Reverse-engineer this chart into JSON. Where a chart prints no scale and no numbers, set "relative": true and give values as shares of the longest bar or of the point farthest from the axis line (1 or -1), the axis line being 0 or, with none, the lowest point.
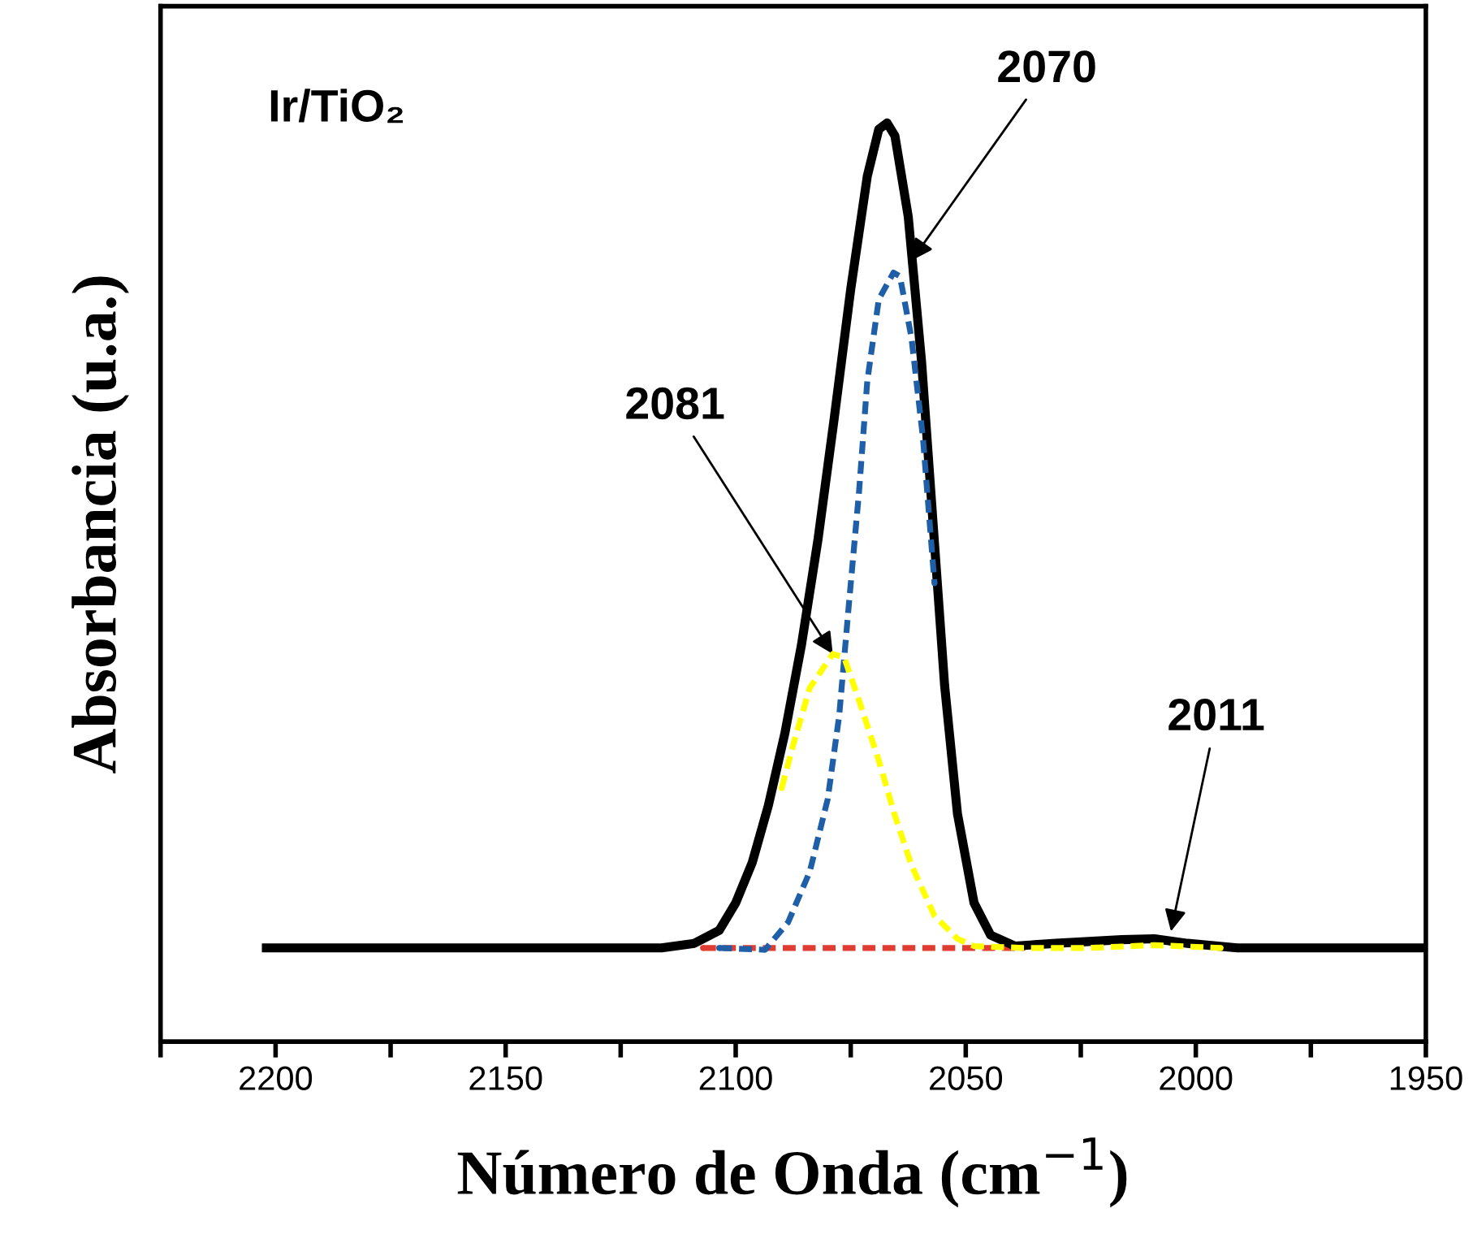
{
  "chart_data": {
    "type": "line",
    "relative": true,
    "xlabel": "Número de Onda (cm$^{−1}$)",
    "ylabel": "Absorbancia (u.a.)",
    "annotations": [
      "Ir/TiO₂",
      {
        "text": "2070",
        "x": 2061.8,
        "y": 0.85
      },
      {
        "text": "2081",
        "x": 2078.9,
        "y": 0.422
      },
      {
        "text": "2011",
        "x": 2005.4,
        "y": 0.12
      }
    ],
    "xlim": [
      2225,
      1950
    ],
    "xticks": [
      {
        "value": 2225,
        "label": null
      },
      2200,
      {
        "value": 2175,
        "label": null
      },
      2150,
      {
        "value": 2125,
        "label": null
      },
      2100,
      {
        "value": 2075,
        "label": null
      },
      2050,
      {
        "value": 2025,
        "label": null
      },
      2000,
      {
        "value": 1975,
        "label": null
      },
      1950
    ],
    "tick_labels": "x",
    "grid": false,
    "legend": false,
    "series": [
      {
        "color": "#000000",
        "line_style": "solid",
        "x": [
          2202,
          2116.1,
          2109,
          2103.6,
          2100,
          2096.4,
          2092.9,
          2089.3,
          2085.7,
          2082.1,
          2078.6,
          2075,
          2071.4,
          2068.9,
          2067.1,
          2065.4,
          2062.5,
          2059.6,
          2057.1,
          2054.6,
          2051.8,
          2048.2,
          2044.6,
          2039.3,
          2030.4,
          2016.1,
          2009,
          2001.8,
          1991,
          1950
        ],
        "values": [
          0.102,
          0.102,
          0.107,
          0.121,
          0.151,
          0.195,
          0.257,
          0.336,
          0.432,
          0.547,
          0.678,
          0.819,
          0.942,
          0.993,
          1.0,
          0.986,
          0.898,
          0.74,
          0.564,
          0.388,
          0.248,
          0.151,
          0.116,
          0.104,
          0.107,
          0.111,
          0.112,
          0.107,
          0.102,
          0.102
        ]
      },
      {
        "color": "#1f5fa8",
        "line_style": "dashed",
        "x": [
          2103.6,
          2093.6,
          2088.6,
          2083.9,
          2080,
          2077.5,
          2075.4,
          2073.2,
          2071.4,
          2068.9,
          2065.7,
          2064.3,
          2061.8,
          2059.3,
          2056.8
        ],
        "values": [
          0.102,
          0.1,
          0.13,
          0.185,
          0.264,
          0.355,
          0.476,
          0.598,
          0.719,
          0.808,
          0.837,
          0.833,
          0.766,
          0.657,
          0.499
        ]
      },
      {
        "color": "#ffff00",
        "line_style": "dashed",
        "x": [
          2090,
          2087.5,
          2083.9,
          2078.9,
          2076.4,
          2072.9,
          2068.9,
          2065.4,
          2061.8,
          2056.8,
          2051.8,
          2048.2,
          2037.5,
          2023.2,
          2009,
          1994.6
        ],
        "values": [
          0.276,
          0.323,
          0.385,
          0.422,
          0.418,
          0.367,
          0.306,
          0.246,
          0.192,
          0.137,
          0.112,
          0.104,
          0.102,
          0.102,
          0.105,
          0.102
        ]
      },
      {
        "color": "#e03c31",
        "line_style": "dashed",
        "x": [
          2107.1,
          2037.5
        ],
        "values": [
          0.102,
          0.102
        ]
      }
    ]
  }
}
